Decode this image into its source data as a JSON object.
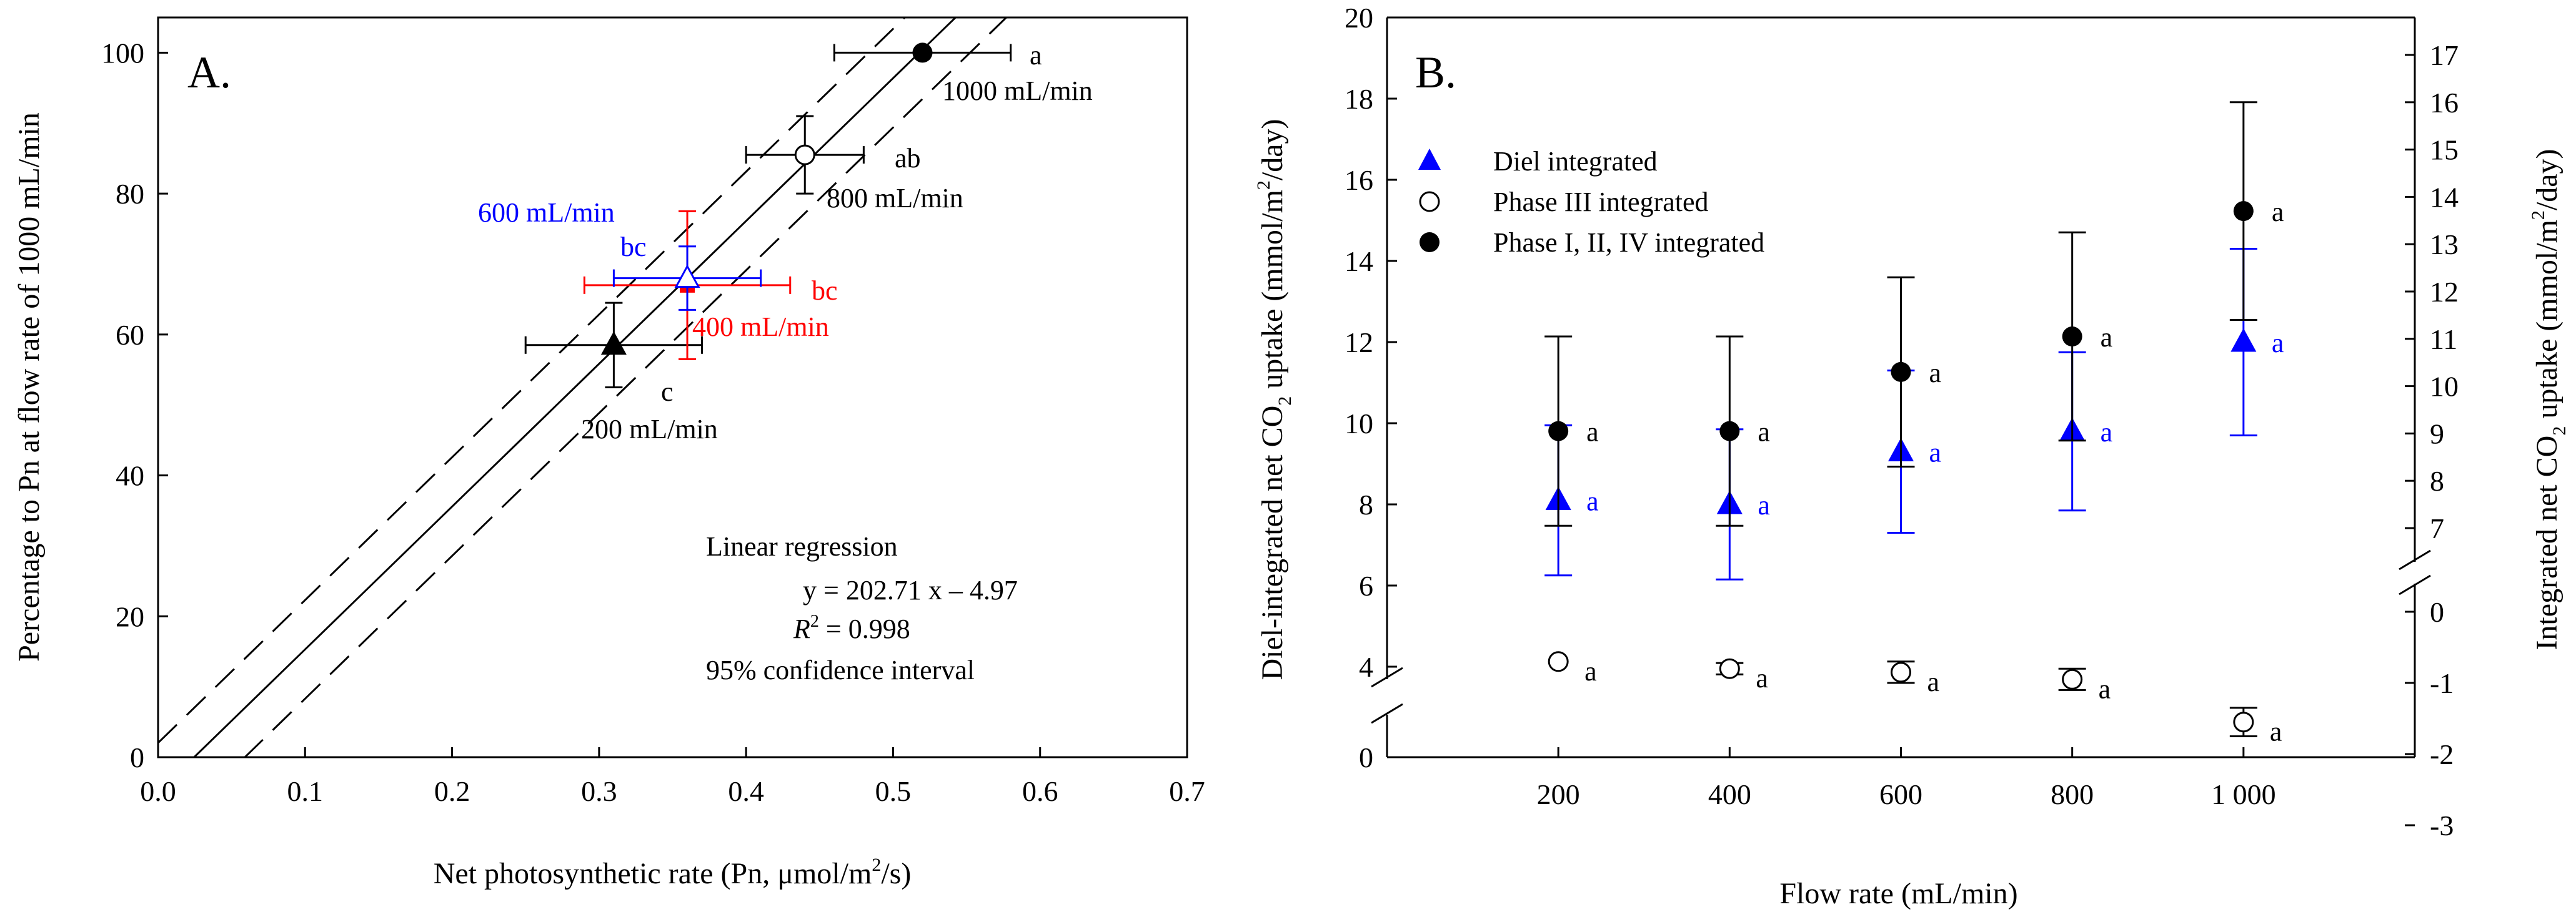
{
  "chart_data": [
    {
      "type": "scatter",
      "panel_label": "A.",
      "xlabel": "Net photosynthetic rate (Pn, μmol/m²/s)",
      "xlabel_parts": [
        "Net photosynthetic rate (Pn, μmol/m",
        "2",
        "/s)"
      ],
      "ylabel": "Percentage to Pn at flow rate of 1000 mL/min",
      "xlim": [
        0,
        0.7
      ],
      "ylim": [
        0,
        105
      ],
      "xticks": [
        0.0,
        0.1,
        0.2,
        0.3,
        0.4,
        0.5,
        0.6,
        0.7
      ],
      "xtick_labels": [
        "0.0",
        "0.1",
        "0.2",
        "0.3",
        "0.4",
        "0.5",
        "0.6",
        "0.7"
      ],
      "yticks": [
        0,
        20,
        40,
        60,
        80,
        100
      ],
      "ytick_labels": [
        "0",
        "20",
        "40",
        "60",
        "80",
        "100"
      ],
      "points": [
        {
          "name": "200 mL/min",
          "x": 0.31,
          "y": 58.5,
          "xerr": 0.06,
          "yerr": 6.0,
          "marker": "triangle-filled",
          "color": "#000000",
          "letter": "c",
          "label": "200 mL/min"
        },
        {
          "name": "400 mL/min",
          "x": 0.36,
          "y": 67.0,
          "xerr": 0.07,
          "yerr": 10.5,
          "marker": "square-filled",
          "color": "#ff0000",
          "letter": "bc",
          "label": "400 mL/min"
        },
        {
          "name": "600 mL/min",
          "x": 0.36,
          "y": 68.0,
          "xerr": 0.05,
          "yerr": 4.5,
          "marker": "triangle-open",
          "color": "#0000ff",
          "letter": "bc",
          "label": "600 mL/min"
        },
        {
          "name": "800 mL/min",
          "x": 0.44,
          "y": 85.5,
          "xerr": 0.04,
          "yerr": 5.5,
          "marker": "circle-open",
          "color": "#000000",
          "letter": "ab",
          "label": "800 mL/min"
        },
        {
          "name": "1000 mL/min",
          "x": 0.52,
          "y": 100.0,
          "xerr": 0.06,
          "yerr": 0,
          "marker": "circle-filled",
          "color": "#000000",
          "letter": "a",
          "label": "1000 mL/min"
        }
      ],
      "regression": {
        "slope": 202.71,
        "intercept": -4.97,
        "ci_offset": 7,
        "title": "Linear regression",
        "equation": "y = 202.71 x – 4.97",
        "r2_symbol": "R",
        "r2_sup": "2",
        "r2_value": " = 0.998",
        "ci_label": "95% confidence interval"
      }
    },
    {
      "type": "scatter",
      "panel_label": "B.",
      "xlabel": "Flow rate (mL/min)",
      "ylabel_left": "Diel-integrated net CO₂ uptake (mmol/m²/day)",
      "ylabel_left_parts": [
        "Diel-integrated net CO",
        "2",
        " uptake (mmol/m",
        "2",
        "/day)"
      ],
      "ylabel_right": "Integrated net CO₂ uptake (mmol/m²/day)",
      "ylabel_right_parts": [
        "Integrated net CO",
        "2",
        " uptake (mmol/m",
        "2",
        "/day)"
      ],
      "categories": [
        "200",
        "400",
        "600",
        "800",
        "1 000"
      ],
      "x": [
        200,
        400,
        600,
        800,
        1000
      ],
      "xlim": [
        0,
        1200
      ],
      "ylim_left": [
        0,
        20
      ],
      "yticks_left": [
        0,
        4,
        6,
        8,
        10,
        12,
        14,
        16,
        18,
        20
      ],
      "ytick_labels_left": [
        "0",
        "4",
        "6",
        "8",
        "10",
        "12",
        "14",
        "16",
        "18",
        "20"
      ],
      "yticks_right_upper": [
        7,
        8,
        9,
        10,
        11,
        12,
        13,
        14,
        15,
        16,
        17
      ],
      "yticks_right_lower": [
        0,
        -1,
        -2,
        -3
      ],
      "axis_break": true,
      "legend": {
        "location": "upper-left",
        "entries": [
          "Diel integrated",
          "Phase III integrated",
          "Phase I, II, IV integrated"
        ]
      },
      "series": [
        {
          "name": "Diel integrated",
          "axis": "left",
          "marker": "triangle-filled",
          "color": "#0000ff",
          "values": [
            8.1,
            8.0,
            9.3,
            9.8,
            12.0
          ],
          "errors": [
            1.85,
            1.85,
            2.0,
            1.95,
            2.3
          ],
          "letters": [
            "a",
            "a",
            "a",
            "a",
            "a"
          ]
        },
        {
          "name": "Phase III integrated",
          "axis": "right",
          "marker": "circle-open",
          "color": "#000000",
          "values": [
            -0.7,
            -0.8,
            -0.85,
            -0.95,
            -1.55
          ],
          "errors": [
            0,
            0.08,
            0.15,
            0.15,
            0.2
          ],
          "letters": [
            "a",
            "a",
            "a",
            "a",
            "a"
          ]
        },
        {
          "name": "Phase I, II, IV integrated",
          "axis": "right",
          "marker": "circle-filled",
          "color": "#000000",
          "values": [
            9.05,
            9.05,
            10.3,
            11.05,
            13.7
          ],
          "errors": [
            2.0,
            2.0,
            2.0,
            2.2,
            2.3
          ],
          "letters": [
            "a",
            "a",
            "a",
            "a",
            "a"
          ]
        }
      ]
    }
  ]
}
